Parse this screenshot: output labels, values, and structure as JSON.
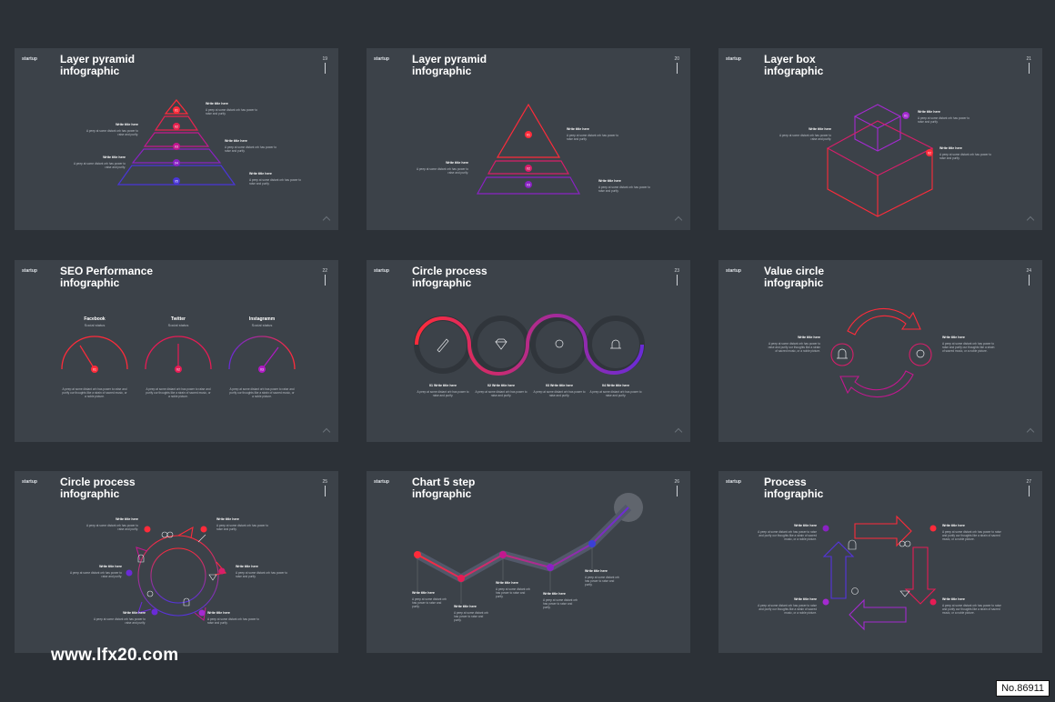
{
  "brand": "startup",
  "generic": {
    "title": "Write title here",
    "desc": "A peep at some distant orb has power to raise and purify.",
    "desc_long": "A peep at some distant orb has power to raise and purify our thoughts like a strain of sacred music, or a noble picture."
  },
  "slides": [
    {
      "title_1": "Layer pyramid",
      "title_2": "infographic",
      "page": "19",
      "markers": [
        "01",
        "02",
        "03",
        "04",
        "05"
      ]
    },
    {
      "title_1": "Layer pyramid",
      "title_2": "infographic",
      "page": "20",
      "markers": [
        "01",
        "02",
        "03"
      ]
    },
    {
      "title_1": "Layer box",
      "title_2": "infographic",
      "page": "21",
      "markers": [
        "01",
        "02"
      ]
    },
    {
      "title_1": "SEO Performance",
      "title_2": "infographic",
      "page": "22",
      "gauges": [
        {
          "name": "Facebook",
          "sub": "Social status",
          "value": "01"
        },
        {
          "name": "Twitter",
          "sub": "Social status",
          "value": "02"
        },
        {
          "name": "Instagramm",
          "sub": "Social status",
          "value": "03"
        }
      ]
    },
    {
      "title_1": "Circle process",
      "title_2": "infographic",
      "page": "23",
      "steps": [
        "01 Write title here",
        "02 Write title here",
        "03 Write title here",
        "04 Write title here"
      ]
    },
    {
      "title_1": "Value circle",
      "title_2": "infographic",
      "page": "24"
    },
    {
      "title_1": "Circle process",
      "title_2": "infographic",
      "page": "25"
    },
    {
      "title_1": "Chart 5 step",
      "title_2": "infographic",
      "page": "26"
    },
    {
      "title_1": "Process",
      "title_2": "infographic",
      "page": "27"
    }
  ],
  "watermark": "www.lfx20.com",
  "badge": "No.86911",
  "colors": {
    "bg": "#2c3137",
    "slide": "#3c4249",
    "red": "#ff2b3a",
    "magenta": "#c2188f",
    "purple": "#6a2bd6",
    "blue": "#3b3fd6"
  }
}
